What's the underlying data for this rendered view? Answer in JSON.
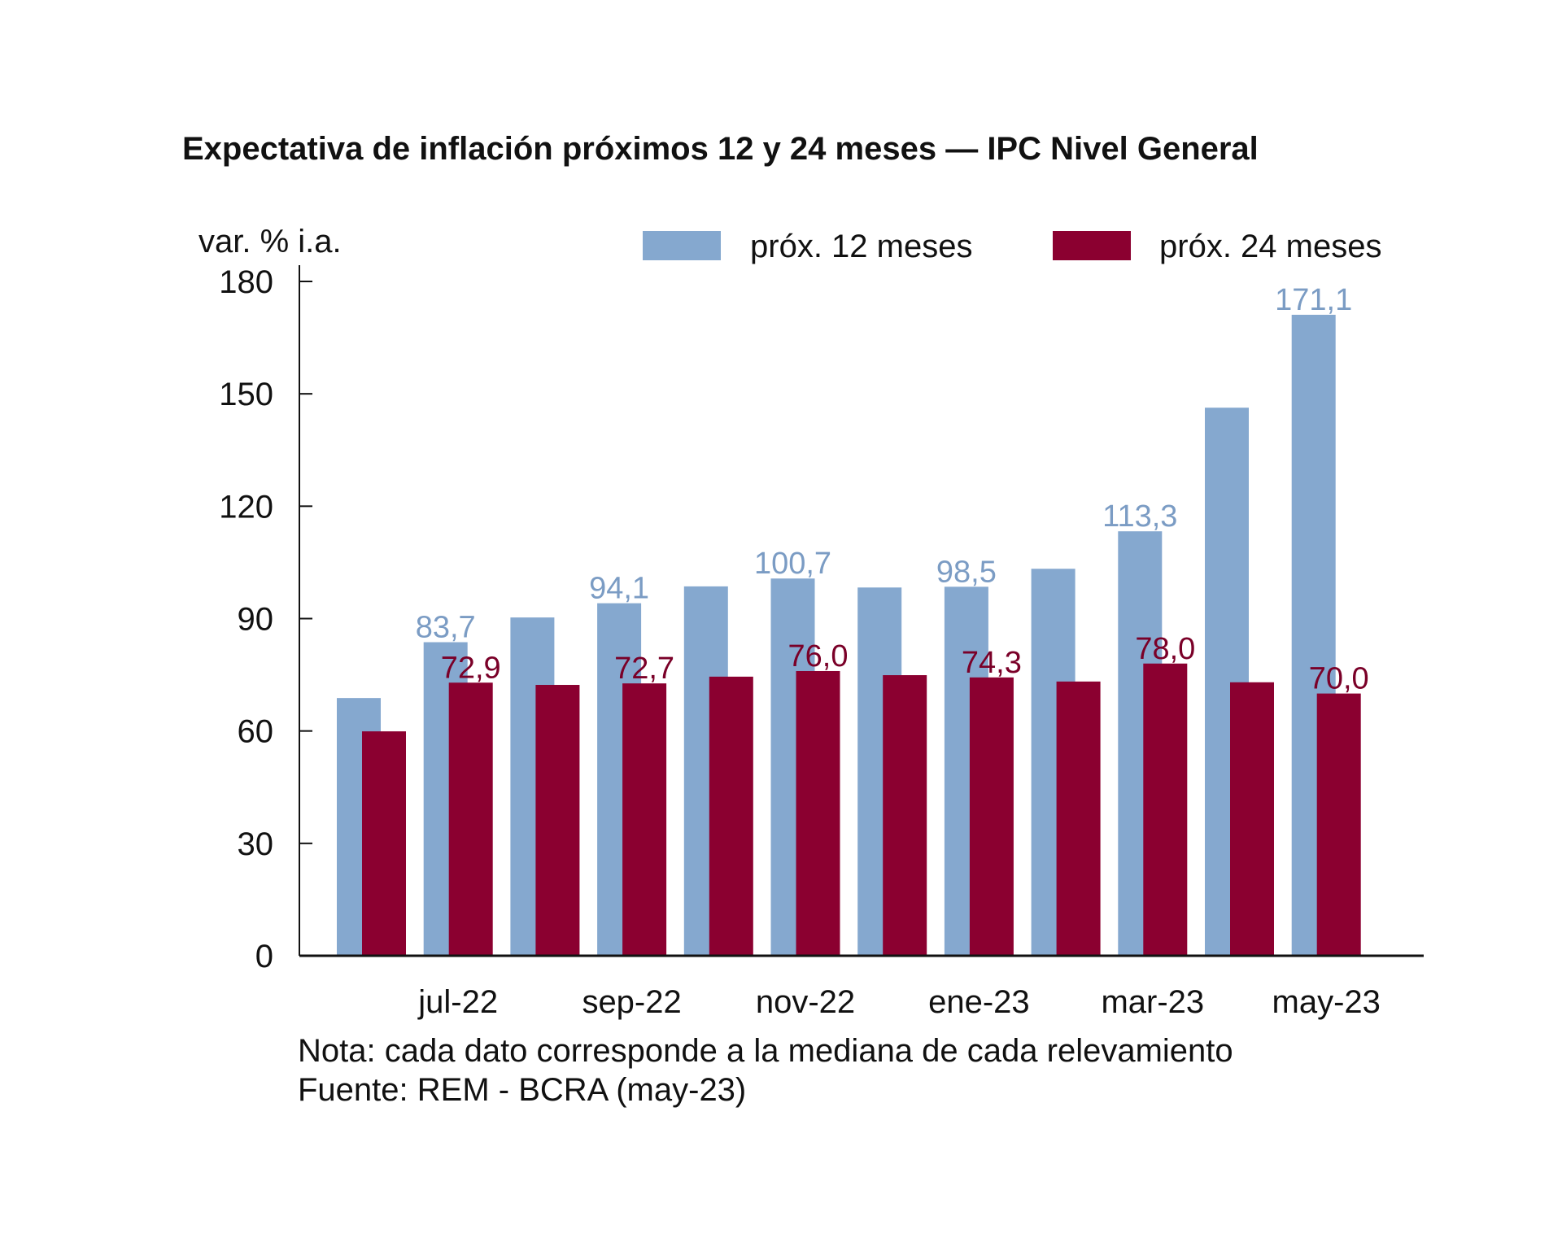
{
  "chart_data": {
    "type": "bar",
    "title": "Expectativa de inflación próximos 12 y 24 meses — IPC Nivel General",
    "ylabel": "var. % i.a.",
    "xlabel": "",
    "ylim": [
      0,
      180
    ],
    "yticks": [
      0,
      30,
      60,
      90,
      120,
      150,
      180
    ],
    "grid": false,
    "legend_position": "top-right",
    "categories": [
      "jun-22",
      "jul-22",
      "ago-22",
      "sep-22",
      "oct-22",
      "nov-22",
      "dic-22",
      "ene-23",
      "feb-23",
      "mar-23",
      "abr-23",
      "may-23"
    ],
    "xtick_labels": [
      "",
      "jul-22",
      "",
      "sep-22",
      "",
      "nov-22",
      "",
      "ene-23",
      "",
      "mar-23",
      "",
      "may-23"
    ],
    "series": [
      {
        "name": "próx. 12 meses",
        "color": "#85A8CF",
        "label_color": "#7b9cc4",
        "values": [
          68.8,
          83.7,
          90.3,
          94.1,
          98.6,
          100.7,
          98.3,
          98.5,
          103.3,
          113.3,
          146.3,
          171.1
        ],
        "data_labels": [
          "",
          "83,7",
          "",
          "94,1",
          "",
          "100,7",
          "",
          "98,5",
          "",
          "113,3",
          "",
          "171,1"
        ]
      },
      {
        "name": "próx. 24 meses",
        "color": "#8B0030",
        "label_color": "#7a0028",
        "values": [
          59.9,
          72.9,
          72.3,
          72.7,
          74.5,
          76.0,
          74.9,
          74.3,
          73.2,
          78.0,
          73.0,
          70.0
        ],
        "data_labels": [
          "",
          "72,9",
          "",
          "72,7",
          "",
          "76,0",
          "",
          "74,3",
          "",
          "78,0",
          "",
          "70,0"
        ]
      }
    ],
    "notes": [
      "Nota: cada dato corresponde a la mediana de cada relevamiento",
      "Fuente: REM - BCRA (may-23)"
    ]
  }
}
